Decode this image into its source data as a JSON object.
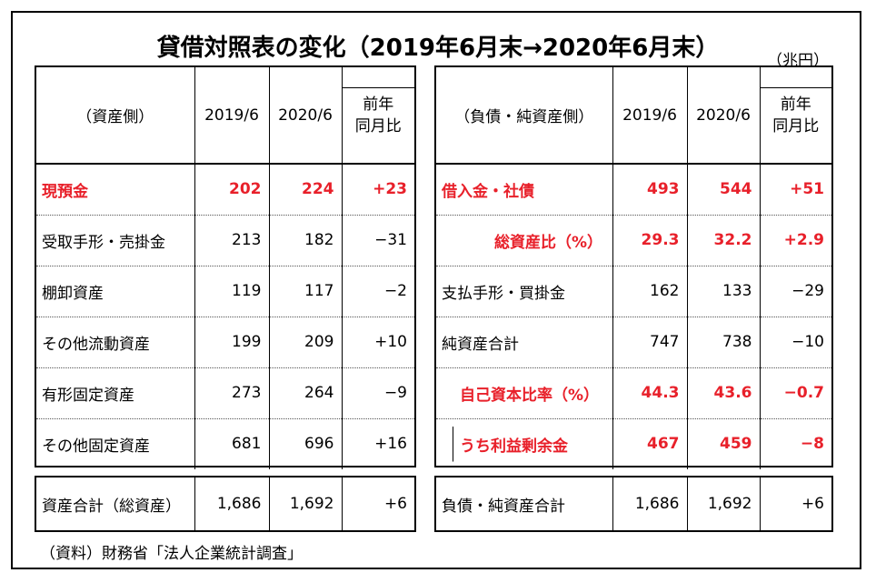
{
  "title": "貸借対照表の変化（2019年6月末→2020年6月末）",
  "unit": "（兆円）",
  "assets": {
    "header": [
      "（資産側）",
      "2019/6",
      "2020/6",
      "前年\n同月比"
    ],
    "rows": [
      {
        "label": "現預金",
        "v2019": "202",
        "v2020": "224",
        "diff": "+23",
        "highlight": true
      },
      {
        "label": "受取手形・売掛金",
        "v2019": "213",
        "v2020": "182",
        "diff": "−31",
        "highlight": false
      },
      {
        "label": "棚卸資産",
        "v2019": "119",
        "v2020": "117",
        "diff": "−2",
        "highlight": false
      },
      {
        "label": "その他流動資産",
        "v2019": "199",
        "v2020": "209",
        "diff": "+10",
        "highlight": false
      },
      {
        "label": "有形固定資産",
        "v2019": "273",
        "v2020": "264",
        "diff": "−9",
        "highlight": false
      },
      {
        "label": "その他固定資産",
        "v2019": "681",
        "v2020": "696",
        "diff": "+16",
        "highlight": false
      }
    ],
    "total": {
      "label": "資産合計（総資産）",
      "v2019": "1,686",
      "v2020": "1,692",
      "diff": "+6"
    }
  },
  "liabilities": {
    "header": [
      "（負債・純資産側）",
      "2019/6",
      "2020/6",
      "前年\n同月比"
    ],
    "rows": [
      {
        "label": "借入金・社債",
        "v2019": "493",
        "v2020": "544",
        "diff": "+51",
        "highlight": true
      },
      {
        "label": "総資産比（%）",
        "v2019": "29.3",
        "v2020": "32.2",
        "diff": "+2.9",
        "highlight": true
      },
      {
        "label": "支払手形・買掛金",
        "v2019": "162",
        "v2020": "133",
        "diff": "−29",
        "highlight": false
      },
      {
        "label": "純資産合計",
        "v2019": "747",
        "v2020": "738",
        "diff": "−10",
        "highlight": false
      },
      {
        "label": "自己資本比率（%）",
        "v2019": "44.3",
        "v2020": "43.6",
        "diff": "−0.7",
        "highlight": true
      },
      {
        "label": "うち利益剰余金",
        "v2019": "467",
        "v2020": "459",
        "diff": "−8",
        "highlight": true
      }
    ],
    "total": {
      "label": "負債・純資産合計",
      "v2019": "1,686",
      "v2020": "1,692",
      "diff": "+6"
    }
  },
  "source": "（資料）財務省「法人企業統計調査」",
  "colors": {
    "highlight": "#e8202a",
    "border": "#000000"
  }
}
